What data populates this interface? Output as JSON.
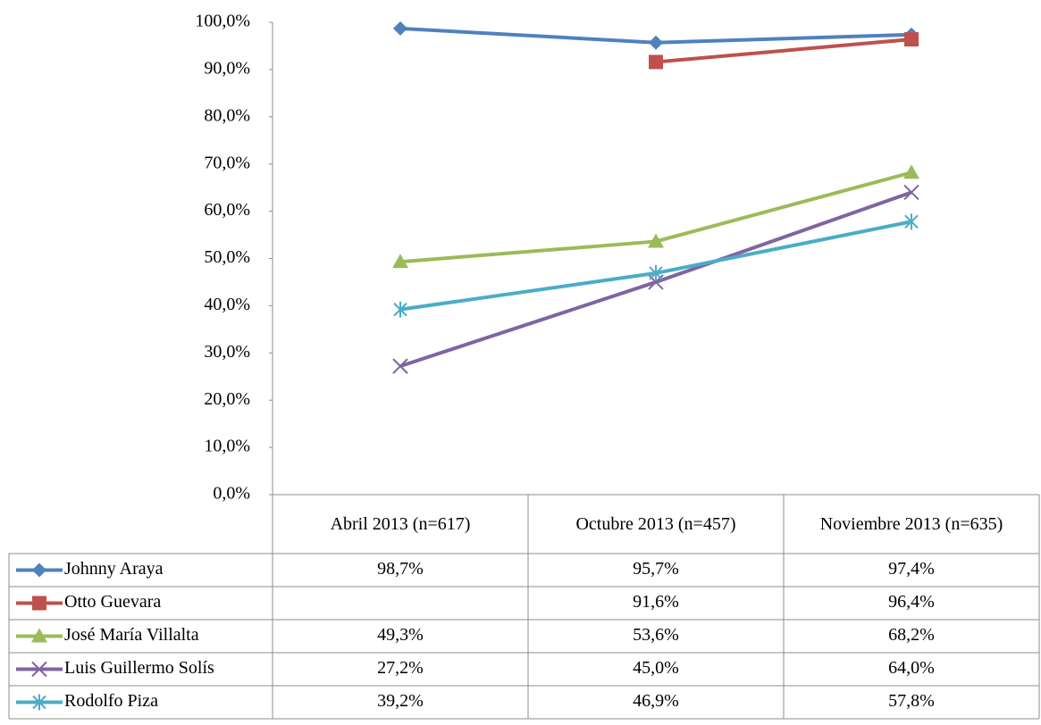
{
  "chart_data": {
    "type": "line",
    "categories": [
      "Abril 2013 (n=617)",
      "Octubre 2013 (n=457)",
      "Noviembre 2013 (n=635)"
    ],
    "ylim": [
      0,
      100
    ],
    "yticks": [
      {
        "value": 0,
        "label": "0,0%"
      },
      {
        "value": 10,
        "label": "10,0%"
      },
      {
        "value": 20,
        "label": "20,0%"
      },
      {
        "value": 30,
        "label": "30,0%"
      },
      {
        "value": 40,
        "label": "40,0%"
      },
      {
        "value": 50,
        "label": "50,0%"
      },
      {
        "value": 60,
        "label": "60,0%"
      },
      {
        "value": 70,
        "label": "70,0%"
      },
      {
        "value": 80,
        "label": "80,0%"
      },
      {
        "value": 90,
        "label": "90,0%"
      },
      {
        "value": 100,
        "label": "100,0%"
      }
    ],
    "series": [
      {
        "name": "Johnny Araya",
        "color": "#4f81bd",
        "marker": "diamond",
        "values": [
          98.7,
          95.7,
          97.4
        ],
        "value_labels": [
          "98,7%",
          "95,7%",
          "97,4%"
        ]
      },
      {
        "name": "Otto Guevara",
        "color": "#c0504d",
        "marker": "square",
        "values": [
          null,
          91.6,
          96.4
        ],
        "value_labels": [
          null,
          "91,6%",
          "96,4%"
        ]
      },
      {
        "name": "José María Villalta",
        "color": "#9bbb59",
        "marker": "triangle",
        "values": [
          49.3,
          53.6,
          68.2
        ],
        "value_labels": [
          "49,3%",
          "53,6%",
          "68,2%"
        ]
      },
      {
        "name": "Luis Guillermo Solís",
        "color": "#8064a2",
        "marker": "x",
        "values": [
          27.2,
          45.0,
          64.0
        ],
        "value_labels": [
          "27,2%",
          "45,0%",
          "64,0%"
        ]
      },
      {
        "name": "Rodolfo Piza",
        "color": "#4bacc6",
        "marker": "star",
        "values": [
          39.2,
          46.9,
          57.8
        ],
        "value_labels": [
          "39,2%",
          "46,9%",
          "57,8%"
        ]
      }
    ]
  }
}
